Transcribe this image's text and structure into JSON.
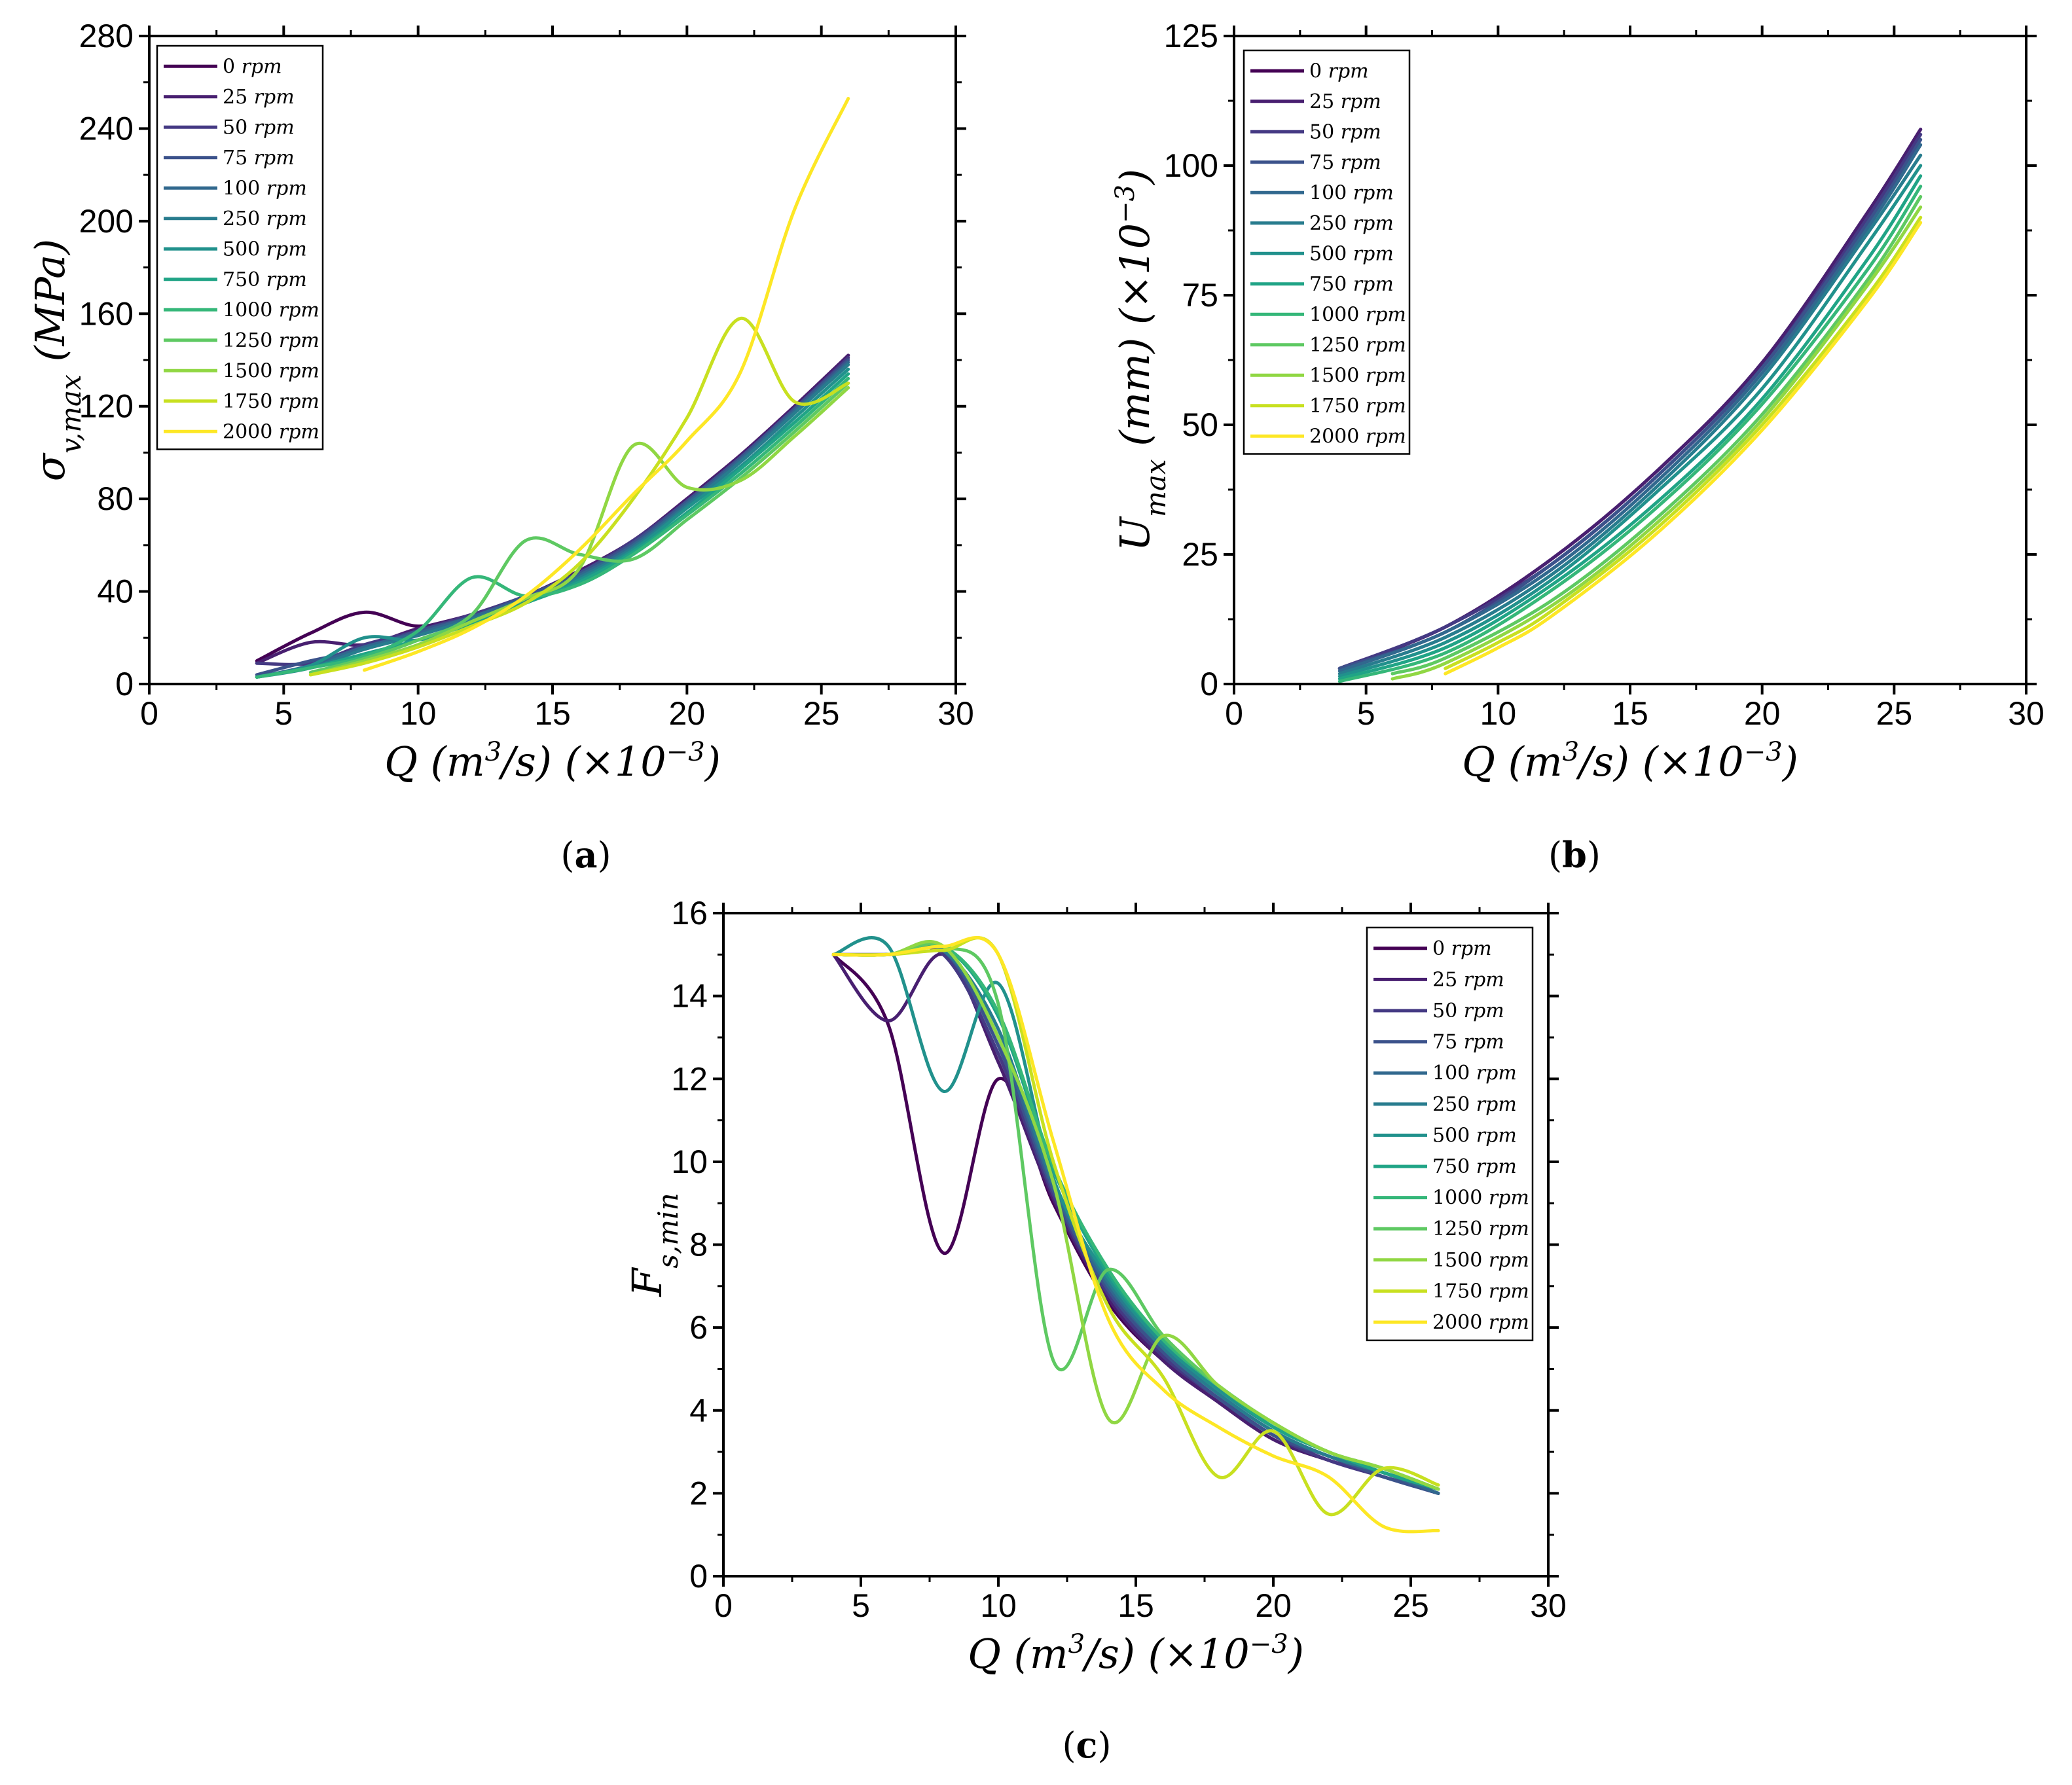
{
  "figure": {
    "series_names": [
      "0 rpm",
      "25 rpm",
      "50 rpm",
      "75 rpm",
      "100 rpm",
      "250 rpm",
      "500 rpm",
      "750 rpm",
      "1000 rpm",
      "1250 rpm",
      "1500 rpm",
      "1750 rpm",
      "2000 rpm"
    ],
    "series_colors": [
      "#440154",
      "#481f70",
      "#443983",
      "#3b528b",
      "#31688e",
      "#287c8e",
      "#21918c",
      "#20a486",
      "#35b779",
      "#5ec962",
      "#90d743",
      "#c8e020",
      "#fde725"
    ],
    "panels": [
      {
        "label": "a",
        "caption_open": "(",
        "caption_close": ")"
      },
      {
        "label": "b",
        "caption_open": "(",
        "caption_close": ")"
      },
      {
        "label": "c",
        "caption_open": "(",
        "caption_close": ")"
      }
    ]
  },
  "chart_data": [
    {
      "id": "a",
      "type": "line",
      "xlabel": "Q (m³/s) (×10⁻³)",
      "ylabel": "σv,max (MPa)",
      "xlim": [
        0,
        30
      ],
      "ylim": [
        0,
        280
      ],
      "xticks": [
        "0",
        "5",
        "10",
        "15",
        "20",
        "25",
        "30"
      ],
      "yticks": [
        "0",
        "40",
        "80",
        "120",
        "160",
        "200",
        "240",
        "280"
      ],
      "legend_position": "top-left",
      "series": [
        {
          "name": "0 rpm",
          "x": [
            4,
            6,
            8,
            10,
            12,
            14,
            16,
            18,
            20,
            22,
            24,
            26
          ],
          "y": [
            10,
            22,
            31,
            25,
            30,
            38,
            49,
            62,
            80,
            99,
            120,
            142
          ]
        },
        {
          "name": "25 rpm",
          "x": [
            4,
            6,
            8,
            10,
            12,
            14,
            16,
            18,
            20,
            22,
            24,
            26
          ],
          "y": [
            9,
            18,
            17,
            24,
            30,
            38,
            49,
            62,
            80,
            99,
            120,
            142
          ]
        },
        {
          "name": "50 rpm",
          "x": [
            4,
            6,
            8,
            10,
            12,
            14,
            16,
            18,
            20,
            22,
            24,
            26
          ],
          "y": [
            9,
            9,
            17,
            23,
            30,
            38,
            48,
            62,
            79,
            98,
            119,
            141
          ]
        },
        {
          "name": "75 rpm",
          "x": [
            4,
            6,
            8,
            10,
            12,
            14,
            16,
            18,
            20,
            22,
            24,
            26
          ],
          "y": [
            4,
            10,
            15,
            23,
            29,
            38,
            48,
            61,
            79,
            98,
            119,
            140
          ]
        },
        {
          "name": "100 rpm",
          "x": [
            4,
            6,
            8,
            10,
            12,
            14,
            16,
            18,
            20,
            22,
            24,
            26
          ],
          "y": [
            3,
            8,
            16,
            22,
            29,
            37,
            47,
            60,
            78,
            97,
            118,
            139
          ]
        },
        {
          "name": "250 rpm",
          "x": [
            4,
            6,
            8,
            10,
            12,
            14,
            16,
            18,
            20,
            22,
            24,
            26
          ],
          "y": [
            3,
            7,
            15,
            21,
            28,
            36,
            46,
            59,
            77,
            96,
            117,
            138
          ]
        },
        {
          "name": "500 rpm",
          "x": [
            4,
            6,
            8,
            10,
            12,
            14,
            16,
            18,
            20,
            22,
            24,
            26
          ],
          "y": [
            3,
            8,
            20,
            19,
            27,
            35,
            45,
            58,
            76,
            94,
            115,
            136
          ]
        },
        {
          "name": "750 rpm",
          "x": [
            4,
            6,
            8,
            10,
            12,
            14,
            16,
            18,
            20,
            22,
            24,
            26
          ],
          "y": [
            3,
            7,
            13,
            19,
            26,
            35,
            44,
            57,
            74,
            93,
            113,
            134
          ]
        },
        {
          "name": "1000 rpm",
          "x": [
            4,
            6,
            8,
            10,
            12,
            14,
            16,
            18,
            20,
            22,
            24,
            26
          ],
          "y": [
            3,
            7,
            12,
            23,
            46,
            38,
            43,
            56,
            73,
            91,
            111,
            132
          ]
        },
        {
          "name": "1250 rpm",
          "x": [
            6,
            8,
            10,
            12,
            14,
            16,
            18,
            20,
            22,
            24,
            26
          ],
          "y": [
            5,
            11,
            19,
            30,
            62,
            56,
            54,
            71,
            89,
            109,
            130
          ]
        },
        {
          "name": "1500 rpm",
          "x": [
            6,
            8,
            10,
            12,
            14,
            16,
            18,
            20,
            22,
            24,
            26
          ],
          "y": [
            4,
            10,
            17,
            27,
            37,
            50,
            103,
            85,
            88,
            107,
            128
          ]
        },
        {
          "name": "1750 rpm",
          "x": [
            6,
            8,
            10,
            12,
            14,
            16,
            18,
            20,
            22,
            24,
            26
          ],
          "y": [
            4,
            9,
            16,
            25,
            35,
            52,
            80,
            115,
            158,
            122,
            130
          ]
        },
        {
          "name": "2000 rpm",
          "x": [
            8,
            10,
            12,
            14,
            16,
            18,
            20,
            22,
            24,
            26
          ],
          "y": [
            6,
            14,
            24,
            38,
            58,
            82,
            105,
            135,
            205,
            253
          ]
        }
      ]
    },
    {
      "id": "b",
      "type": "line",
      "xlabel": "Q (m³/s) (×10⁻³)",
      "ylabel": "Umax (mm) (×10⁻³)",
      "xlim": [
        0,
        30
      ],
      "ylim": [
        0,
        125
      ],
      "xticks": [
        "0",
        "5",
        "10",
        "15",
        "20",
        "25",
        "30"
      ],
      "yticks": [
        "0",
        "25",
        "50",
        "75",
        "100",
        "125"
      ],
      "legend_position": "top-left",
      "series": [
        {
          "name": "0 rpm",
          "x": [
            4,
            8,
            12,
            16,
            20,
            24,
            26
          ],
          "y": [
            3,
            11,
            24,
            41,
            62,
            91,
            107
          ]
        },
        {
          "name": "25 rpm",
          "x": [
            4,
            8,
            12,
            16,
            20,
            24,
            26
          ],
          "y": [
            3,
            11,
            24,
            41,
            62,
            91,
            107
          ]
        },
        {
          "name": "50 rpm",
          "x": [
            4,
            8,
            12,
            16,
            20,
            24,
            26
          ],
          "y": [
            3,
            11,
            23,
            40,
            61,
            90,
            106
          ]
        },
        {
          "name": "75 rpm",
          "x": [
            4,
            8,
            12,
            16,
            20,
            24,
            26
          ],
          "y": [
            3,
            10,
            23,
            40,
            61,
            89,
            105
          ]
        },
        {
          "name": "100 rpm",
          "x": [
            4,
            8,
            12,
            16,
            20,
            24,
            26
          ],
          "y": [
            2.5,
            10,
            22,
            39,
            60,
            88,
            104
          ]
        },
        {
          "name": "250 rpm",
          "x": [
            4,
            8,
            12,
            16,
            20,
            24,
            26
          ],
          "y": [
            2,
            9,
            21,
            38,
            59,
            87,
            102
          ]
        },
        {
          "name": "500 rpm",
          "x": [
            4,
            8,
            12,
            16,
            20,
            24,
            26
          ],
          "y": [
            1.5,
            8,
            20,
            37,
            57,
            85,
            100
          ]
        },
        {
          "name": "750 rpm",
          "x": [
            4,
            8,
            12,
            16,
            20,
            24,
            26
          ],
          "y": [
            1,
            7,
            19,
            35,
            55,
            82,
            98
          ]
        },
        {
          "name": "1000 rpm",
          "x": [
            4,
            8,
            12,
            16,
            20,
            24,
            26
          ],
          "y": [
            0.5,
            6,
            18,
            34,
            54,
            80,
            96
          ]
        },
        {
          "name": "1250 rpm",
          "x": [
            6,
            8,
            12,
            16,
            20,
            24,
            26
          ],
          "y": [
            2,
            5,
            16,
            32,
            52,
            78,
            94
          ]
        },
        {
          "name": "1500 rpm",
          "x": [
            6,
            8,
            12,
            16,
            20,
            24,
            26
          ],
          "y": [
            1,
            4,
            15,
            31,
            51,
            77,
            92
          ]
        },
        {
          "name": "1750 rpm",
          "x": [
            8,
            10,
            12,
            16,
            20,
            24,
            26
          ],
          "y": [
            3,
            8,
            14,
            30,
            50,
            75,
            90
          ]
        },
        {
          "name": "2000 rpm",
          "x": [
            8,
            10,
            12,
            16,
            20,
            24,
            26
          ],
          "y": [
            2,
            7,
            13,
            29,
            49,
            74,
            89
          ]
        }
      ]
    },
    {
      "id": "c",
      "type": "line",
      "xlabel": "Q (m³/s) (×10⁻³)",
      "ylabel": "Fs,min",
      "xlim": [
        0,
        30
      ],
      "ylim": [
        0,
        16
      ],
      "xticks": [
        "0",
        "5",
        "10",
        "15",
        "20",
        "25",
        "30"
      ],
      "yticks": [
        "0",
        "2",
        "4",
        "6",
        "8",
        "10",
        "12",
        "14",
        "16"
      ],
      "legend_position": "top-right",
      "series": [
        {
          "name": "0 rpm",
          "x": [
            4,
            6,
            8,
            10,
            12,
            14,
            16,
            18,
            20,
            22,
            24,
            26
          ],
          "y": [
            15,
            13.3,
            7.8,
            12.0,
            9.0,
            6.6,
            5.2,
            4.2,
            3.3,
            2.8,
            2.4,
            2.0
          ]
        },
        {
          "name": "25 rpm",
          "x": [
            4,
            6,
            8,
            10,
            12,
            14,
            16,
            18,
            20,
            22,
            24,
            26
          ],
          "y": [
            15,
            13.4,
            15.0,
            12.4,
            9.1,
            6.7,
            5.2,
            4.2,
            3.3,
            2.8,
            2.4,
            2.0
          ]
        },
        {
          "name": "50 rpm",
          "x": [
            4,
            6,
            8,
            10,
            12,
            14,
            16,
            18,
            20,
            22,
            24,
            26
          ],
          "y": [
            15,
            15.0,
            15.0,
            12.6,
            9.2,
            6.8,
            5.3,
            4.3,
            3.4,
            2.8,
            2.4,
            2.0
          ]
        },
        {
          "name": "75 rpm",
          "x": [
            4,
            6,
            8,
            10,
            12,
            14,
            16,
            18,
            20,
            22,
            24,
            26
          ],
          "y": [
            15,
            15.0,
            15.1,
            12.8,
            9.3,
            6.9,
            5.4,
            4.3,
            3.4,
            2.9,
            2.4,
            2.0
          ]
        },
        {
          "name": "100 rpm",
          "x": [
            4,
            6,
            8,
            10,
            12,
            14,
            16,
            18,
            20,
            22,
            24,
            26
          ],
          "y": [
            15,
            15.0,
            15.1,
            13.0,
            9.4,
            7.0,
            5.5,
            4.4,
            3.5,
            2.9,
            2.5,
            2.0
          ]
        },
        {
          "name": "250 rpm",
          "x": [
            4,
            6,
            8,
            10,
            12,
            14,
            16,
            18,
            20,
            22,
            24,
            26
          ],
          "y": [
            15,
            15.0,
            15.1,
            13.2,
            9.5,
            7.1,
            5.5,
            4.4,
            3.5,
            2.9,
            2.5,
            2.1
          ]
        },
        {
          "name": "500 rpm",
          "x": [
            4,
            6,
            8,
            10,
            12,
            14,
            16,
            18,
            20,
            22,
            24,
            26
          ],
          "y": [
            15,
            15.2,
            11.7,
            14.3,
            9.6,
            7.2,
            5.6,
            4.5,
            3.6,
            3.0,
            2.5,
            2.1
          ]
        },
        {
          "name": "750 rpm",
          "x": [
            4,
            6,
            8,
            10,
            12,
            14,
            16,
            18,
            20,
            22,
            24,
            26
          ],
          "y": [
            15,
            15.0,
            15.2,
            13.5,
            9.8,
            7.3,
            5.7,
            4.6,
            3.6,
            3.0,
            2.5,
            2.1
          ]
        },
        {
          "name": "1000 rpm",
          "x": [
            4,
            6,
            8,
            10,
            12,
            14,
            16,
            18,
            20,
            22,
            24,
            26
          ],
          "y": [
            15,
            15.0,
            15.2,
            13.6,
            9.9,
            7.4,
            5.7,
            4.6,
            3.7,
            3.0,
            2.6,
            2.1
          ]
        },
        {
          "name": "1250 rpm",
          "x": [
            4,
            6,
            8,
            10,
            12,
            14,
            16,
            18,
            20,
            22,
            24,
            26
          ],
          "y": [
            15,
            15.0,
            15.2,
            13.8,
            5.2,
            7.4,
            5.8,
            4.6,
            3.7,
            3.0,
            2.6,
            2.1
          ]
        },
        {
          "name": "1500 rpm",
          "x": [
            4,
            6,
            8,
            10,
            12,
            14,
            16,
            18,
            20,
            22,
            24,
            26
          ],
          "y": [
            15,
            15.0,
            15.2,
            13.0,
            9.5,
            3.8,
            5.8,
            4.6,
            3.7,
            3.0,
            2.6,
            2.1
          ]
        },
        {
          "name": "1750 rpm",
          "x": [
            4,
            6,
            8,
            10,
            12,
            14,
            16,
            18,
            20,
            22,
            24,
            26
          ],
          "y": [
            15,
            15.0,
            15.1,
            15.0,
            10.0,
            6.5,
            4.8,
            2.4,
            3.5,
            1.5,
            2.6,
            2.2
          ]
        },
        {
          "name": "2000 rpm",
          "x": [
            4,
            6,
            8,
            10,
            12,
            14,
            16,
            18,
            20,
            22,
            24,
            26
          ],
          "y": [
            15,
            15.0,
            15.2,
            15.0,
            10.5,
            6.2,
            4.5,
            3.6,
            2.9,
            2.4,
            1.2,
            1.1
          ]
        }
      ]
    }
  ]
}
